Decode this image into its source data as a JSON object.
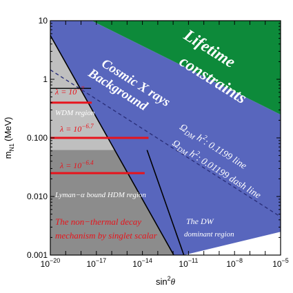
{
  "chart_data": {
    "type": "area",
    "title": "",
    "x_scale": "log",
    "y_scale": "log",
    "xlim": [
      1e-20,
      1e-05
    ],
    "ylim": [
      0.001,
      10
    ],
    "xlabel_base": "sin",
    "xlabel_sup": "2",
    "xlabel_theta": "θ",
    "ylabel_main": "m",
    "ylabel_sub": "N1",
    "ylabel_unit": "(MeV)",
    "x_ticks": [
      {
        "value": 1e-20,
        "base": "10",
        "exp": "−20"
      },
      {
        "value": 1e-17,
        "base": "10",
        "exp": "−17"
      },
      {
        "value": 1e-14,
        "base": "10",
        "exp": "−14"
      },
      {
        "value": 1e-11,
        "base": "10",
        "exp": "−11"
      },
      {
        "value": 1e-08,
        "base": "10",
        "exp": "−8"
      },
      {
        "value": 1e-05,
        "base": "10",
        "exp": "−5"
      }
    ],
    "y_ticks": [
      {
        "value": 0.001,
        "label": "0.001"
      },
      {
        "value": 0.01,
        "label": "0.010"
      },
      {
        "value": 0.1,
        "label": "0.100"
      },
      {
        "value": 1,
        "label": "1"
      },
      {
        "value": 10,
        "label": "10"
      }
    ],
    "colors": {
      "lifetime": "#0d8a3a",
      "xray": "#5866bd",
      "wdm": "#bfbfbf",
      "hdm": "#8c8c8c",
      "red": "#e8131b",
      "dash": "#2a2f7a"
    },
    "regions": {
      "lifetime": [
        [
          1e-20,
          10
        ],
        [
          5e-18,
          10
        ],
        [
          1e-05,
          0.25
        ],
        [
          1e-05,
          10
        ]
      ],
      "xray": [
        [
          1e-20,
          5.6
        ],
        [
          1e-20,
          10
        ],
        [
          5e-18,
          10
        ],
        [
          1e-05,
          0.25
        ],
        [
          1e-05,
          0.0025
        ],
        [
          5e-12,
          0.001
        ],
        [
          1.1e-12,
          0.001
        ]
      ],
      "gray_all": [
        [
          1e-20,
          0.001
        ],
        [
          1e-20,
          5.6
        ],
        [
          1.1e-12,
          0.001
        ]
      ],
      "hdm": [
        [
          1e-20,
          0.001
        ],
        [
          1e-20,
          0.062
        ],
        [
          2e-14,
          0.062
        ],
        [
          1.1e-12,
          0.001
        ]
      ]
    },
    "lines": {
      "solid_1199": [
        [
          1e-20,
          5.6
        ],
        [
          1.1e-12,
          0.001
        ]
      ],
      "dash_01199": [
        [
          1e-20,
          1.45
        ],
        [
          1e-05,
          0.0045
        ]
      ],
      "dw_boundary": [
        [
          2e-14,
          0.062
        ],
        [
          5e-12,
          0.001
        ]
      ],
      "wdm_top": [
        [
          1e-20,
          0.7
        ],
        [
          4.5e-18,
          0.7
        ]
      ]
    },
    "lambda_lines": [
      {
        "y": 0.4,
        "x_end": 5e-18
      },
      {
        "y": 0.1,
        "x_end": 2.5e-14
      },
      {
        "y": 0.025,
        "x_end": 1.4e-14
      }
    ],
    "annotations": {
      "lifetime_1": "Lifetime",
      "lifetime_2": "constraints",
      "cosmic_1": "Cosmic X rays",
      "cosmic_2": "Background",
      "omega_a": "Ω",
      "omega_a_sub": "DM",
      "omega_a_h": " h",
      "omega_a_sup": "2",
      "omega_a_tail": ": 0.1199 line",
      "omega_b": "Ω",
      "omega_b_sub": "DM",
      "omega_b_h": " h",
      "omega_b_sup": "2",
      "omega_b_tail": ": 0.01199 dash line",
      "lambda_1": "λ = 10",
      "lambda_1_exp": "−7",
      "lambda_2": "λ = 10",
      "lambda_2_exp": "−6.7",
      "lambda_3": "λ = 10",
      "lambda_3_exp": "−6.4",
      "wdm": "WDM region",
      "hdm": "Lyman−α bound HDM region",
      "nonthermal_1": "The non−thermal decay",
      "nonthermal_2": "mechanism by singlet scalar",
      "dw_1": "The DW",
      "dw_2": "dominant region"
    }
  }
}
